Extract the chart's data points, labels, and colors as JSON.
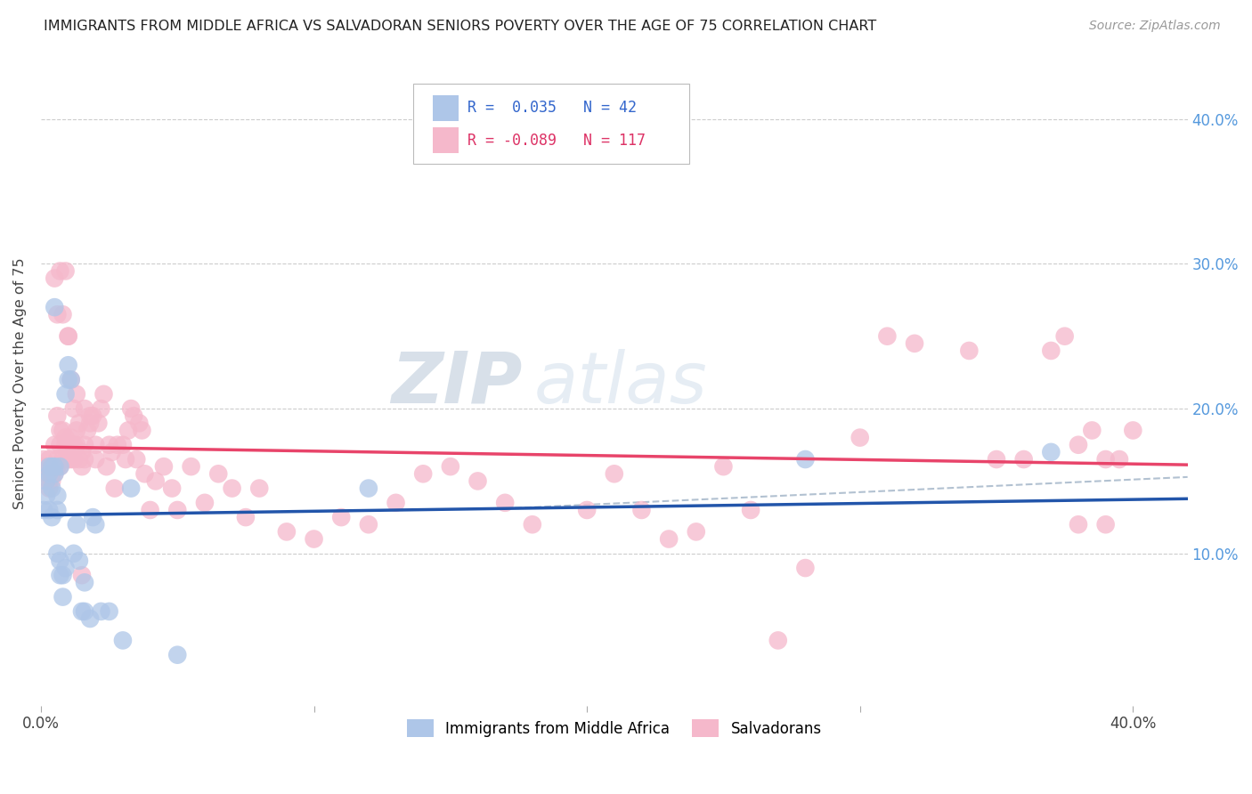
{
  "title": "IMMIGRANTS FROM MIDDLE AFRICA VS SALVADORAN SENIORS POVERTY OVER THE AGE OF 75 CORRELATION CHART",
  "source": "Source: ZipAtlas.com",
  "ylabel": "Seniors Poverty Over the Age of 75",
  "legend_labels": [
    "Immigrants from Middle Africa",
    "Salvadorans"
  ],
  "r_blue": 0.035,
  "n_blue": 42,
  "r_pink": -0.089,
  "n_pink": 117,
  "xlim": [
    0.0,
    0.42
  ],
  "ylim": [
    -0.005,
    0.44
  ],
  "blue_color": "#aec6e8",
  "pink_color": "#f5b8cb",
  "blue_line_color": "#2255aa",
  "pink_line_color": "#e8446a",
  "dashed_line_color": "#aabbcc",
  "watermark_color": "#ccd8e8",
  "grid_color": "#cccccc",
  "ytick_color": "#5599dd",
  "blue_x": [
    0.001,
    0.002,
    0.002,
    0.003,
    0.003,
    0.003,
    0.004,
    0.004,
    0.004,
    0.005,
    0.005,
    0.005,
    0.006,
    0.006,
    0.006,
    0.007,
    0.007,
    0.007,
    0.008,
    0.008,
    0.009,
    0.009,
    0.01,
    0.01,
    0.011,
    0.012,
    0.013,
    0.014,
    0.015,
    0.016,
    0.016,
    0.018,
    0.019,
    0.02,
    0.022,
    0.025,
    0.03,
    0.033,
    0.05,
    0.12,
    0.28,
    0.37
  ],
  "blue_y": [
    0.13,
    0.15,
    0.14,
    0.155,
    0.13,
    0.16,
    0.145,
    0.125,
    0.16,
    0.27,
    0.155,
    0.16,
    0.14,
    0.13,
    0.1,
    0.095,
    0.085,
    0.16,
    0.085,
    0.07,
    0.09,
    0.21,
    0.22,
    0.23,
    0.22,
    0.1,
    0.12,
    0.095,
    0.06,
    0.06,
    0.08,
    0.055,
    0.125,
    0.12,
    0.06,
    0.06,
    0.04,
    0.145,
    0.03,
    0.145,
    0.165,
    0.17
  ],
  "pink_x": [
    0.001,
    0.001,
    0.002,
    0.002,
    0.003,
    0.003,
    0.003,
    0.004,
    0.004,
    0.005,
    0.005,
    0.005,
    0.006,
    0.006,
    0.006,
    0.007,
    0.007,
    0.007,
    0.008,
    0.008,
    0.009,
    0.009,
    0.01,
    0.01,
    0.011,
    0.011,
    0.012,
    0.012,
    0.013,
    0.013,
    0.014,
    0.015,
    0.015,
    0.016,
    0.016,
    0.017,
    0.018,
    0.019,
    0.02,
    0.02,
    0.021,
    0.022,
    0.023,
    0.024,
    0.025,
    0.026,
    0.027,
    0.028,
    0.03,
    0.031,
    0.032,
    0.033,
    0.034,
    0.035,
    0.036,
    0.037,
    0.038,
    0.04,
    0.042,
    0.045,
    0.048,
    0.05,
    0.055,
    0.06,
    0.065,
    0.07,
    0.075,
    0.08,
    0.09,
    0.1,
    0.11,
    0.12,
    0.13,
    0.14,
    0.15,
    0.16,
    0.17,
    0.18,
    0.2,
    0.21,
    0.22,
    0.23,
    0.24,
    0.25,
    0.26,
    0.27,
    0.28,
    0.3,
    0.31,
    0.32,
    0.34,
    0.35,
    0.36,
    0.37,
    0.375,
    0.38,
    0.385,
    0.39,
    0.395,
    0.4,
    0.38,
    0.39,
    0.005,
    0.006,
    0.007,
    0.008,
    0.009,
    0.01,
    0.011,
    0.012,
    0.013,
    0.015,
    0.009,
    0.01,
    0.014,
    0.016,
    0.018
  ],
  "pink_y": [
    0.16,
    0.165,
    0.16,
    0.155,
    0.15,
    0.165,
    0.145,
    0.155,
    0.15,
    0.155,
    0.175,
    0.16,
    0.195,
    0.165,
    0.16,
    0.185,
    0.175,
    0.16,
    0.185,
    0.165,
    0.18,
    0.165,
    0.175,
    0.25,
    0.18,
    0.165,
    0.175,
    0.165,
    0.175,
    0.21,
    0.165,
    0.17,
    0.16,
    0.175,
    0.165,
    0.185,
    0.19,
    0.195,
    0.175,
    0.165,
    0.19,
    0.2,
    0.21,
    0.16,
    0.175,
    0.17,
    0.145,
    0.175,
    0.175,
    0.165,
    0.185,
    0.2,
    0.195,
    0.165,
    0.19,
    0.185,
    0.155,
    0.13,
    0.15,
    0.16,
    0.145,
    0.13,
    0.16,
    0.135,
    0.155,
    0.145,
    0.125,
    0.145,
    0.115,
    0.11,
    0.125,
    0.12,
    0.135,
    0.155,
    0.16,
    0.15,
    0.135,
    0.12,
    0.13,
    0.155,
    0.13,
    0.11,
    0.115,
    0.16,
    0.13,
    0.04,
    0.09,
    0.18,
    0.25,
    0.245,
    0.24,
    0.165,
    0.165,
    0.24,
    0.25,
    0.175,
    0.185,
    0.165,
    0.165,
    0.185,
    0.12,
    0.12,
    0.29,
    0.265,
    0.295,
    0.265,
    0.295,
    0.25,
    0.22,
    0.2,
    0.185,
    0.085,
    0.175,
    0.165,
    0.19,
    0.2,
    0.195
  ]
}
